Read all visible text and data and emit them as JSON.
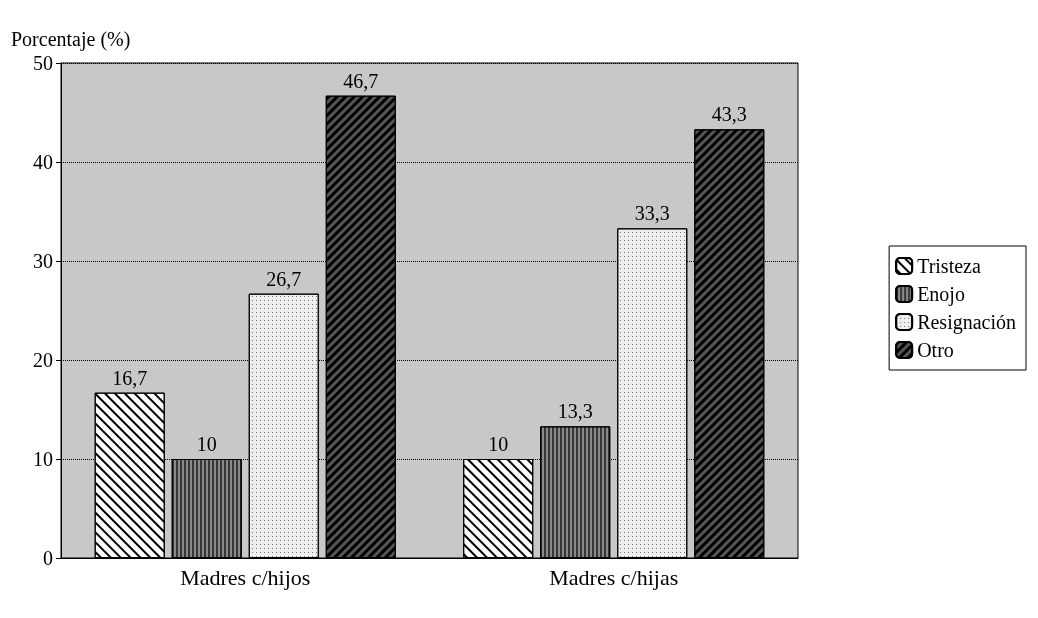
{
  "chart_data": {
    "type": "bar",
    "ylabel": "Porcentaje (%)",
    "categories": [
      "Madres c/hijos",
      "Madres c/hijas"
    ],
    "series": [
      {
        "name": "Tristeza",
        "color": "#ffffff",
        "values": [
          16.7,
          10
        ],
        "value_labels": [
          "16,7",
          "10"
        ]
      },
      {
        "name": "Enojo",
        "color": "#8a8a8a",
        "values": [
          10,
          13.3
        ],
        "value_labels": [
          "10",
          "13,3"
        ]
      },
      {
        "name": "Resignación",
        "color": "#eeeeee",
        "values": [
          26.7,
          33.3
        ],
        "value_labels": [
          "26,7",
          "33,3"
        ]
      },
      {
        "name": "Otro",
        "color": "#555555",
        "values": [
          46.7,
          43.3
        ],
        "value_labels": [
          "46,7",
          "43,3"
        ]
      }
    ],
    "ylim": [
      0,
      50
    ],
    "yticks": [
      0,
      10,
      20,
      30,
      40,
      50
    ],
    "grid": "y",
    "legend": "right"
  }
}
